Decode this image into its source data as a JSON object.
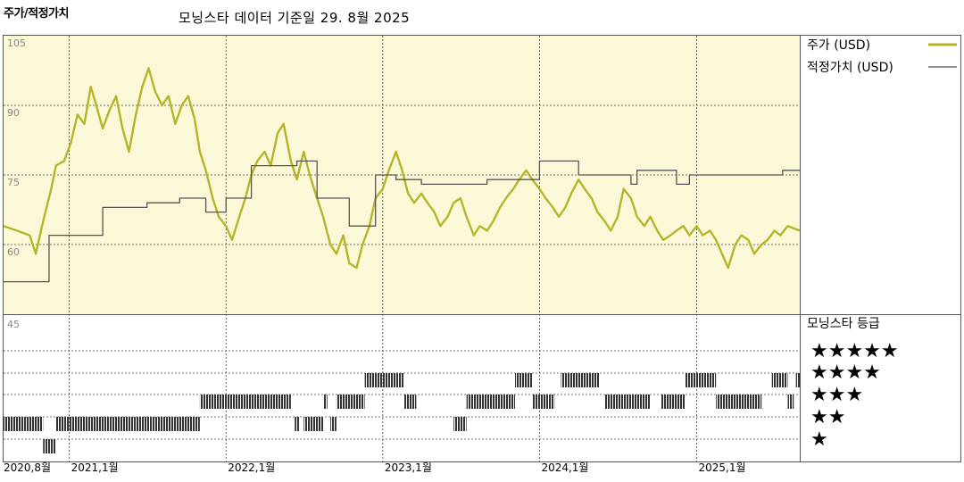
{
  "header": {
    "title": "주가/적정가치",
    "subtitle": "모닝스타 데이터 기준일 29. 8월 2025"
  },
  "legend": {
    "price_label": "주가 (USD)",
    "fair_label": "적정가치 (USD)",
    "rating_title": "모닝스타 등급",
    "stars": [
      "★★★★★",
      "★★★★",
      "★★★",
      "★★",
      "★"
    ]
  },
  "colors": {
    "price": "#b5b52a",
    "fair": "#555555",
    "panel_bg": "#fbf8d8",
    "rating_bar": "#333333"
  },
  "chart_data": {
    "type": "line",
    "title": "주가/적정가치",
    "y_ticks": [
      "105",
      "90",
      "75",
      "60",
      "45"
    ],
    "ylim": [
      45,
      105
    ],
    "x_ticks": [
      "2020,8월",
      "2021,1월",
      "2022,1월",
      "2023,1월",
      "2024,1월",
      "2025,1월"
    ],
    "x_tick_dates": [
      "2020-08-01",
      "2021-01-01",
      "2022-01-01",
      "2023-01-01",
      "2024-01-01",
      "2025-01-01"
    ],
    "xlim": [
      "2020-08-01",
      "2025-08-29"
    ],
    "series": [
      {
        "name": "주가 (USD)",
        "points": [
          [
            "2020-08-01",
            64
          ],
          [
            "2020-09-01",
            63
          ],
          [
            "2020-10-01",
            62
          ],
          [
            "2020-10-15",
            58
          ],
          [
            "2020-11-01",
            65
          ],
          [
            "2020-11-20",
            72
          ],
          [
            "2020-12-01",
            77
          ],
          [
            "2020-12-20",
            78
          ],
          [
            "2021-01-05",
            82
          ],
          [
            "2021-01-20",
            88
          ],
          [
            "2021-02-05",
            86
          ],
          [
            "2021-02-20",
            94
          ],
          [
            "2021-03-05",
            90
          ],
          [
            "2021-03-20",
            85
          ],
          [
            "2021-04-05",
            89
          ],
          [
            "2021-04-20",
            92
          ],
          [
            "2021-05-05",
            85
          ],
          [
            "2021-05-20",
            80
          ],
          [
            "2021-06-05",
            88
          ],
          [
            "2021-06-20",
            94
          ],
          [
            "2021-07-05",
            98
          ],
          [
            "2021-07-20",
            93
          ],
          [
            "2021-08-05",
            90
          ],
          [
            "2021-08-20",
            92
          ],
          [
            "2021-09-05",
            86
          ],
          [
            "2021-09-20",
            90
          ],
          [
            "2021-10-05",
            92
          ],
          [
            "2021-10-20",
            87
          ],
          [
            "2021-11-01",
            80
          ],
          [
            "2021-11-15",
            76
          ],
          [
            "2021-12-01",
            70
          ],
          [
            "2021-12-15",
            66
          ],
          [
            "2022-01-01",
            64
          ],
          [
            "2022-01-15",
            61
          ],
          [
            "2022-02-01",
            66
          ],
          [
            "2022-02-15",
            70
          ],
          [
            "2022-03-01",
            75
          ],
          [
            "2022-03-15",
            78
          ],
          [
            "2022-04-01",
            80
          ],
          [
            "2022-04-15",
            77
          ],
          [
            "2022-05-01",
            84
          ],
          [
            "2022-05-15",
            86
          ],
          [
            "2022-06-01",
            78
          ],
          [
            "2022-06-15",
            74
          ],
          [
            "2022-07-01",
            80
          ],
          [
            "2022-07-15",
            75
          ],
          [
            "2022-08-01",
            70
          ],
          [
            "2022-08-15",
            66
          ],
          [
            "2022-09-01",
            60
          ],
          [
            "2022-09-15",
            58
          ],
          [
            "2022-10-01",
            62
          ],
          [
            "2022-10-15",
            56
          ],
          [
            "2022-11-01",
            55
          ],
          [
            "2022-11-15",
            60
          ],
          [
            "2022-12-01",
            64
          ],
          [
            "2022-12-15",
            70
          ],
          [
            "2023-01-01",
            72
          ],
          [
            "2023-01-15",
            76
          ],
          [
            "2023-02-01",
            80
          ],
          [
            "2023-02-15",
            76
          ],
          [
            "2023-03-01",
            71
          ],
          [
            "2023-03-15",
            69
          ],
          [
            "2023-04-01",
            71
          ],
          [
            "2023-04-15",
            69
          ],
          [
            "2023-05-01",
            67
          ],
          [
            "2023-05-15",
            64
          ],
          [
            "2023-06-01",
            66
          ],
          [
            "2023-06-15",
            69
          ],
          [
            "2023-07-01",
            70
          ],
          [
            "2023-07-15",
            66
          ],
          [
            "2023-08-01",
            62
          ],
          [
            "2023-08-15",
            64
          ],
          [
            "2023-09-01",
            63
          ],
          [
            "2023-09-15",
            65
          ],
          [
            "2023-10-01",
            68
          ],
          [
            "2023-10-15",
            70
          ],
          [
            "2023-11-01",
            72
          ],
          [
            "2023-11-15",
            74
          ],
          [
            "2023-12-01",
            76
          ],
          [
            "2023-12-15",
            74
          ],
          [
            "2024-01-01",
            72
          ],
          [
            "2024-01-15",
            70
          ],
          [
            "2024-02-01",
            68
          ],
          [
            "2024-02-15",
            66
          ],
          [
            "2024-03-01",
            68
          ],
          [
            "2024-03-15",
            71
          ],
          [
            "2024-04-01",
            74
          ],
          [
            "2024-04-15",
            72
          ],
          [
            "2024-05-01",
            70
          ],
          [
            "2024-05-15",
            67
          ],
          [
            "2024-06-01",
            65
          ],
          [
            "2024-06-15",
            63
          ],
          [
            "2024-07-01",
            66
          ],
          [
            "2024-07-15",
            72
          ],
          [
            "2024-08-01",
            70
          ],
          [
            "2024-08-15",
            66
          ],
          [
            "2024-09-01",
            64
          ],
          [
            "2024-09-15",
            66
          ],
          [
            "2024-10-01",
            63
          ],
          [
            "2024-10-15",
            61
          ],
          [
            "2024-11-01",
            62
          ],
          [
            "2024-11-15",
            63
          ],
          [
            "2024-12-01",
            64
          ],
          [
            "2024-12-15",
            62
          ],
          [
            "2025-01-01",
            64
          ],
          [
            "2025-01-15",
            62
          ],
          [
            "2025-02-01",
            63
          ],
          [
            "2025-02-15",
            61
          ],
          [
            "2025-03-01",
            58
          ],
          [
            "2025-03-15",
            55
          ],
          [
            "2025-04-01",
            60
          ],
          [
            "2025-04-15",
            62
          ],
          [
            "2025-05-01",
            61
          ],
          [
            "2025-05-15",
            58
          ],
          [
            "2025-06-01",
            60
          ],
          [
            "2025-06-15",
            61
          ],
          [
            "2025-07-01",
            63
          ],
          [
            "2025-07-15",
            62
          ],
          [
            "2025-08-01",
            64
          ],
          [
            "2025-08-29",
            63
          ]
        ]
      },
      {
        "name": "적정가치 (USD)",
        "points": [
          [
            "2020-08-01",
            52
          ],
          [
            "2020-11-15",
            52
          ],
          [
            "2020-11-15",
            62
          ],
          [
            "2021-03-20",
            62
          ],
          [
            "2021-03-20",
            68
          ],
          [
            "2021-07-01",
            68
          ],
          [
            "2021-07-01",
            69
          ],
          [
            "2021-09-15",
            69
          ],
          [
            "2021-09-15",
            70
          ],
          [
            "2021-11-15",
            70
          ],
          [
            "2021-11-15",
            67
          ],
          [
            "2022-01-01",
            67
          ],
          [
            "2022-01-01",
            70
          ],
          [
            "2022-03-01",
            70
          ],
          [
            "2022-03-01",
            77
          ],
          [
            "2022-06-15",
            77
          ],
          [
            "2022-06-15",
            78
          ],
          [
            "2022-08-01",
            78
          ],
          [
            "2022-08-01",
            70
          ],
          [
            "2022-10-15",
            70
          ],
          [
            "2022-10-15",
            64
          ],
          [
            "2022-12-15",
            64
          ],
          [
            "2022-12-15",
            75
          ],
          [
            "2023-02-01",
            75
          ],
          [
            "2023-02-01",
            74
          ],
          [
            "2023-04-01",
            74
          ],
          [
            "2023-04-01",
            73
          ],
          [
            "2023-09-01",
            73
          ],
          [
            "2023-09-01",
            74
          ],
          [
            "2024-01-01",
            74
          ],
          [
            "2024-01-01",
            78
          ],
          [
            "2024-04-01",
            78
          ],
          [
            "2024-04-01",
            75
          ],
          [
            "2024-08-01",
            75
          ],
          [
            "2024-08-01",
            73
          ],
          [
            "2024-08-15",
            73
          ],
          [
            "2024-08-15",
            76
          ],
          [
            "2024-11-15",
            76
          ],
          [
            "2024-11-15",
            73
          ],
          [
            "2024-12-15",
            73
          ],
          [
            "2024-12-15",
            75
          ],
          [
            "2025-07-20",
            75
          ],
          [
            "2025-07-20",
            76
          ],
          [
            "2025-08-29",
            76
          ]
        ]
      }
    ],
    "ratings": {
      "categories": [
        "5",
        "4",
        "3",
        "2",
        "1"
      ],
      "segments": [
        {
          "stars": 2,
          "from": "2020-08-01",
          "to": "2020-11-01"
        },
        {
          "stars": 1,
          "from": "2020-11-01",
          "to": "2020-12-01"
        },
        {
          "stars": 2,
          "from": "2020-12-01",
          "to": "2021-11-01"
        },
        {
          "stars": 3,
          "from": "2021-11-01",
          "to": "2022-06-01"
        },
        {
          "stars": 2,
          "from": "2022-06-10",
          "to": "2022-06-20"
        },
        {
          "stars": 2,
          "from": "2022-07-01",
          "to": "2022-08-15"
        },
        {
          "stars": 3,
          "from": "2022-08-15",
          "to": "2022-08-25"
        },
        {
          "stars": 2,
          "from": "2022-09-01",
          "to": "2022-09-15"
        },
        {
          "stars": 3,
          "from": "2022-09-15",
          "to": "2022-11-20"
        },
        {
          "stars": 4,
          "from": "2022-11-20",
          "to": "2023-02-20"
        },
        {
          "stars": 3,
          "from": "2023-02-20",
          "to": "2023-03-20"
        },
        {
          "stars": 2,
          "from": "2023-06-15",
          "to": "2023-07-15"
        },
        {
          "stars": 3,
          "from": "2023-07-15",
          "to": "2023-11-05"
        },
        {
          "stars": 4,
          "from": "2023-11-05",
          "to": "2023-12-15"
        },
        {
          "stars": 3,
          "from": "2023-12-15",
          "to": "2024-02-05"
        },
        {
          "stars": 4,
          "from": "2024-02-20",
          "to": "2024-05-20"
        },
        {
          "stars": 3,
          "from": "2024-06-01",
          "to": "2024-09-15"
        },
        {
          "stars": 3,
          "from": "2024-10-10",
          "to": "2024-12-05"
        },
        {
          "stars": 4,
          "from": "2024-12-05",
          "to": "2025-02-15"
        },
        {
          "stars": 3,
          "from": "2025-02-15",
          "to": "2025-06-01"
        },
        {
          "stars": 4,
          "from": "2025-06-25",
          "to": "2025-08-01"
        },
        {
          "stars": 3,
          "from": "2025-08-01",
          "to": "2025-08-15"
        },
        {
          "stars": 4,
          "from": "2025-08-20",
          "to": "2025-08-29"
        }
      ]
    }
  }
}
